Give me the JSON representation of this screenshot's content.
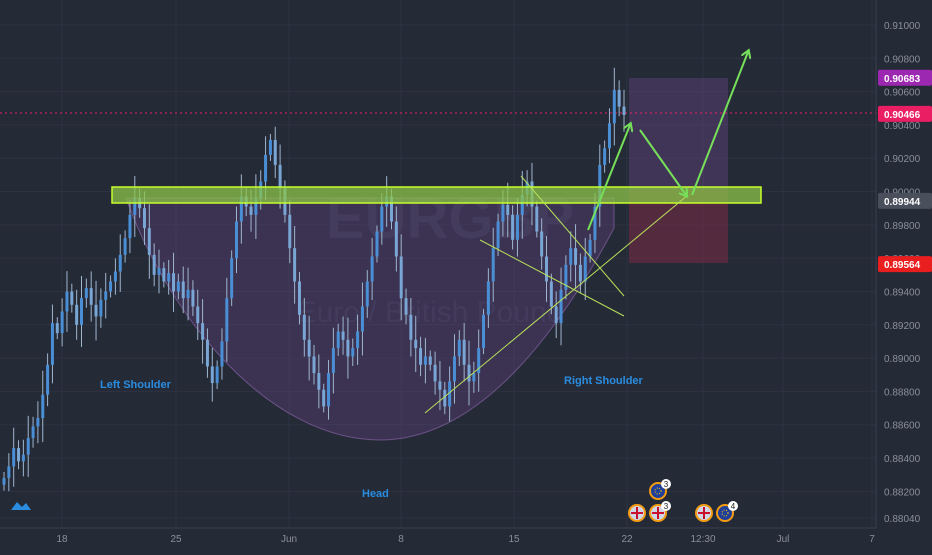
{
  "instrument_watermark": {
    "symbol": "EURGBP",
    "name": "Euro / British Pound"
  },
  "price_badges": [
    {
      "label": "0.90683",
      "value": 0.90683,
      "color": "#9c27b0"
    },
    {
      "label": "0.90466",
      "value": 0.90466,
      "color": "#e91e63"
    },
    {
      "label": "0.89944",
      "value": 0.89944,
      "color": "#4a4f5c"
    },
    {
      "label": "0.89564",
      "value": 0.89564,
      "color": "#e91e1e"
    }
  ],
  "annotations": {
    "left_shoulder": "Left Shoulder",
    "head": "Head",
    "right_shoulder": "Right Shoulder"
  },
  "event_markers": [
    {
      "flag": "eu",
      "count": "3"
    },
    {
      "flag": "uk",
      "count": ""
    },
    {
      "flag": "uk",
      "count": "3"
    },
    {
      "flag": "uk",
      "count": ""
    },
    {
      "flag": "eu",
      "count": "4"
    }
  ],
  "colors": {
    "background": "#252a37",
    "candle": "#4a8fd6",
    "support_zone": "#8bc34a",
    "arrow": "#76e05a",
    "cup_fill": "#7b4f9d",
    "label_blue": "#2a8de0"
  },
  "chart_data": {
    "type": "candlestick",
    "title": "",
    "xlabel": "",
    "ylabel": "",
    "x_tick_labels": [
      "18",
      "25",
      "Jun",
      "8",
      "15",
      "22",
      "12:30",
      "Jul",
      "7"
    ],
    "y_tick_labels": [
      "0.91000",
      "0.90800",
      "0.90600",
      "0.90400",
      "0.90200",
      "0.90000",
      "0.89800",
      "0.89600",
      "0.89400",
      "0.89200",
      "0.89000",
      "0.88800",
      "0.88600",
      "0.88400",
      "0.88200",
      "0.88040"
    ],
    "ylim": [
      0.8798,
      0.9115
    ],
    "support_zone": [
      0.8992,
      0.9002
    ],
    "pattern": "inverse head and shoulders",
    "grid": true,
    "legend": "none",
    "close_series": [
      0.8828,
      0.8835,
      0.8846,
      0.8838,
      0.8842,
      0.8852,
      0.8859,
      0.8864,
      0.8878,
      0.8896,
      0.8921,
      0.8915,
      0.8928,
      0.894,
      0.8932,
      0.892,
      0.8936,
      0.8942,
      0.8932,
      0.8925,
      0.8935,
      0.894,
      0.8946,
      0.8952,
      0.8962,
      0.8972,
      0.8986,
      0.8996,
      0.899,
      0.8978,
      0.8962,
      0.895,
      0.8954,
      0.8946,
      0.8951,
      0.894,
      0.8946,
      0.8936,
      0.8941,
      0.8931,
      0.8921,
      0.8911,
      0.8895,
      0.8885,
      0.8895,
      0.891,
      0.8936,
      0.896,
      0.8982,
      0.8997,
      0.8991,
      0.8986,
      0.8996,
      0.9006,
      0.9022,
      0.9031,
      0.9016,
      0.9002,
      0.8986,
      0.8966,
      0.8946,
      0.8926,
      0.8911,
      0.8901,
      0.8891,
      0.8881,
      0.8871,
      0.8891,
      0.8906,
      0.8916,
      0.8911,
      0.8901,
      0.8906,
      0.8916,
      0.8931,
      0.8946,
      0.8961,
      0.8976,
      0.8991,
      0.8997,
      0.8982,
      0.8961,
      0.8936,
      0.8926,
      0.8911,
      0.8906,
      0.8896,
      0.8901,
      0.8896,
      0.8886,
      0.8881,
      0.8871,
      0.8886,
      0.8901,
      0.8911,
      0.8896,
      0.8886,
      0.8891,
      0.8906,
      0.8926,
      0.8946,
      0.8966,
      0.8982,
      0.8992,
      0.8986,
      0.8971,
      0.8986,
      0.8998,
      0.9006,
      0.8991,
      0.8976,
      0.8961,
      0.8946,
      0.8931,
      0.8921,
      0.8941,
      0.8956,
      0.8966,
      0.8956,
      0.8946,
      0.8961,
      0.8971,
      0.8991,
      0.9016,
      0.9026,
      0.9041,
      0.9061,
      0.9051,
      0.9046
    ]
  }
}
